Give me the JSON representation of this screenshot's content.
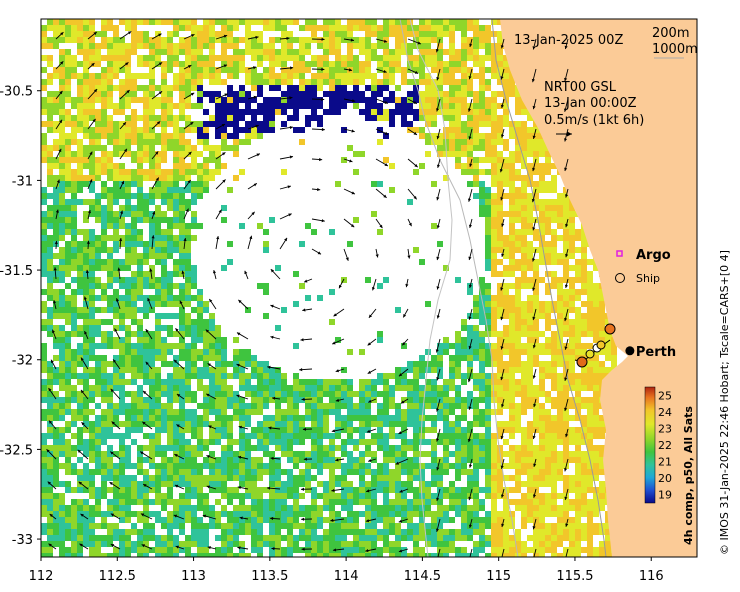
{
  "map": {
    "date_label": "13-Jan-2025 00Z",
    "contours": [
      "200m",
      "1000m"
    ],
    "current_model": "NRT00 GSL",
    "current_time": "13-Jan 00:00Z",
    "current_scale": "0.5m/s (1kt 6h)",
    "x_ticks": [
      "112",
      "112.5",
      "113",
      "113.5",
      "114",
      "114.5",
      "115",
      "115.5",
      "116"
    ],
    "y_ticks": [
      "-30.5",
      "-31",
      "-31.5",
      "-32",
      "-32.5",
      "-33"
    ],
    "x_range": [
      112,
      116.3
    ],
    "y_range": [
      -33.1,
      -30.1
    ],
    "land_color": "#fbcb97",
    "credit": "© IMOS 31-Jan-2025 22:46 Hobart; Tscale=CARS+[0 4]"
  },
  "legend": {
    "argo_label": "Argo",
    "ship_label": "Ship",
    "city_label": "Perth",
    "city_lon": 115.86,
    "city_lat": -31.95
  },
  "colorbar": {
    "title": "4h comp, p50, All Sats",
    "ticks": [
      "25",
      "24",
      "23",
      "22",
      "21",
      "20",
      "19"
    ],
    "min": 18.5,
    "max": 25.5,
    "colors": [
      "#0a0a8a",
      "#1f4fd1",
      "#1fa7d6",
      "#2fc39a",
      "#3fc43f",
      "#8fd62a",
      "#e0e82a",
      "#f2c62a",
      "#e8731f",
      "#b02510"
    ]
  }
}
